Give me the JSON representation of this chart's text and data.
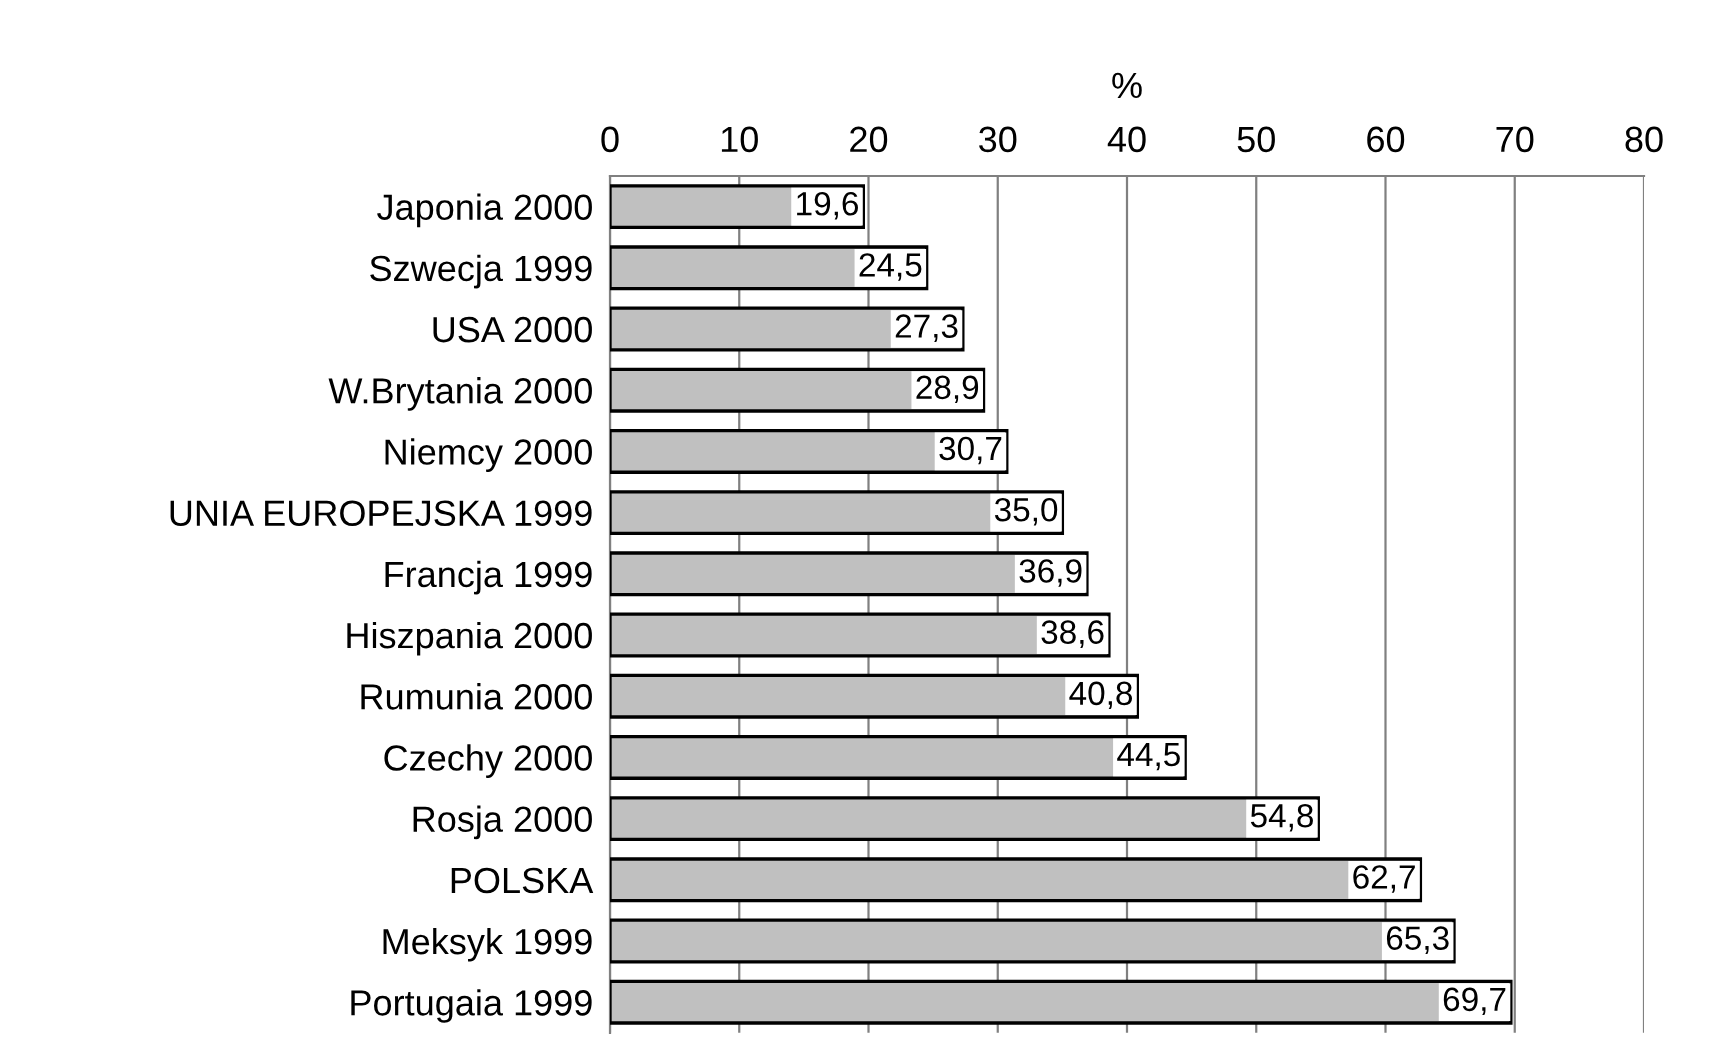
{
  "chart_data": {
    "type": "bar",
    "orientation": "horizontal",
    "xlabel": "%",
    "categories": [
      "Japonia 2000",
      "Szwecja 1999",
      "USA 2000",
      "W.Brytania 2000",
      "Niemcy 2000",
      "UNIA EUROPEJSKA 1999",
      "Francja 1999",
      "Hiszpania 2000",
      "Rumunia 2000",
      "Czechy 2000",
      "Rosja 2000",
      "POLSKA",
      "Meksyk 1999",
      "Portugaia 1999"
    ],
    "values": [
      19.6,
      24.5,
      27.3,
      28.9,
      30.7,
      35.0,
      36.9,
      38.6,
      40.8,
      44.5,
      54.8,
      62.7,
      65.3,
      69.7
    ],
    "value_labels": [
      "19,6",
      "24,5",
      "27,3",
      "28,9",
      "30,7",
      "35,0",
      "36,9",
      "38,6",
      "40,8",
      "44,5",
      "54,8",
      "62,7",
      "65,3",
      "69,7"
    ],
    "color": "#c0c0c0",
    "xlim": [
      0,
      80
    ],
    "xticks": [
      0,
      10,
      20,
      30,
      40,
      50,
      60,
      70,
      80
    ],
    "grid": "x",
    "legend": false
  }
}
